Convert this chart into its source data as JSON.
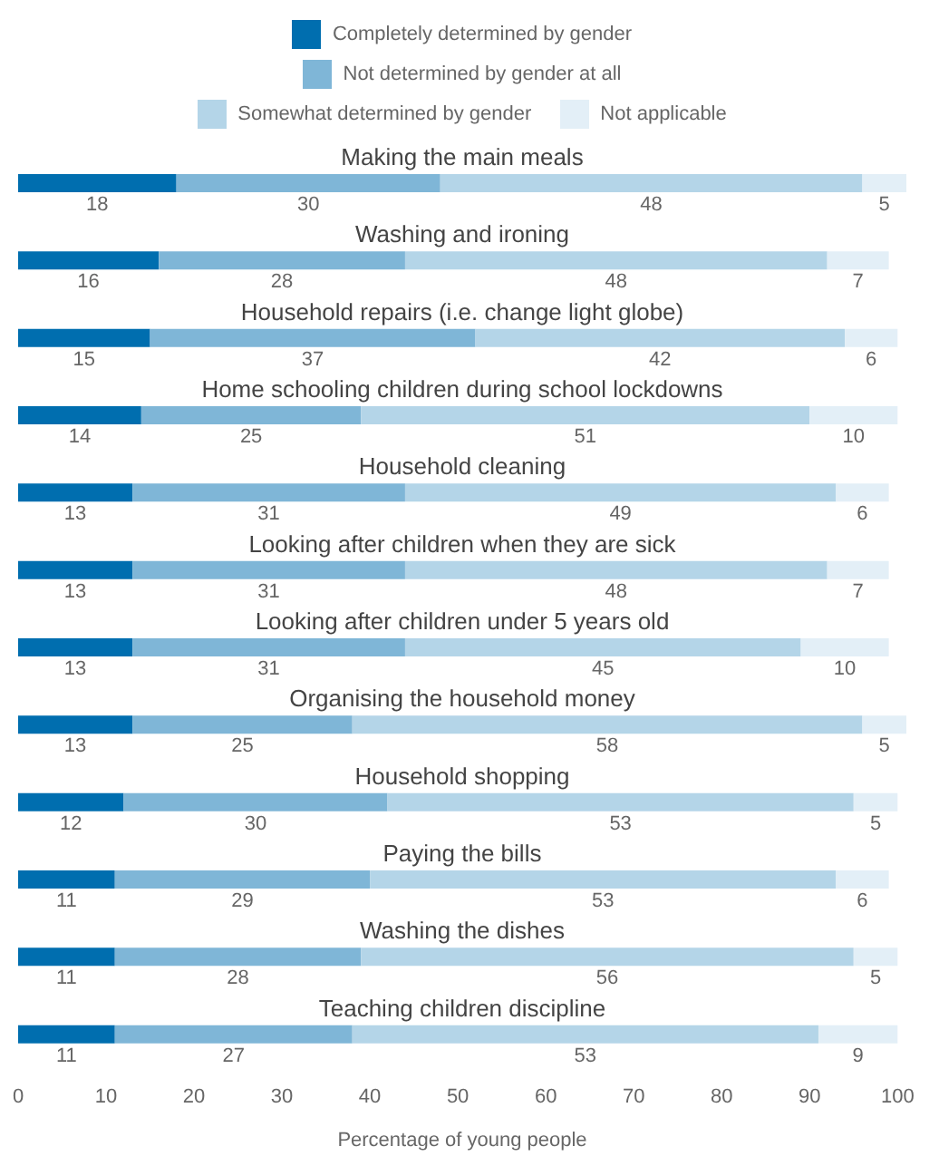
{
  "chart_data": {
    "type": "bar",
    "orientation": "horizontal",
    "stacked": true,
    "data_labels": true,
    "legend": "top",
    "grid": false,
    "xlabel": "Percentage of young people",
    "categories": [
      "Making the main meals",
      "Washing and ironing",
      "Household repairs (i.e. change light globe)",
      "Home schooling children during school lockdowns",
      "Household cleaning",
      "Looking after children when they are sick",
      "Looking after children under 5 years old",
      "Organising the household money",
      "Household shopping",
      "Paying the bills",
      "Washing the dishes",
      "Teaching children discipline"
    ],
    "xlim": [
      0,
      101
    ],
    "xticks": [
      0,
      10,
      20,
      30,
      40,
      50,
      60,
      70,
      80,
      90,
      100
    ],
    "series": [
      {
        "name": "Completely determined by gender",
        "color": "#006eaf",
        "values": [
          18,
          16,
          15,
          14,
          13,
          13,
          13,
          13,
          12,
          11,
          11,
          11
        ]
      },
      {
        "name": "Not determined by gender at all",
        "color": "#7fb6d7",
        "values": [
          30,
          28,
          37,
          25,
          31,
          31,
          31,
          25,
          30,
          29,
          28,
          27
        ]
      },
      {
        "name": "Somewhat determined by gender",
        "color": "#b4d5e8",
        "values": [
          48,
          48,
          42,
          51,
          49,
          48,
          45,
          58,
          53,
          53,
          56,
          53
        ]
      },
      {
        "name": "Not applicable",
        "color": "#e3eff7",
        "values": [
          5,
          7,
          6,
          10,
          6,
          7,
          10,
          5,
          5,
          6,
          5,
          9
        ]
      }
    ]
  }
}
